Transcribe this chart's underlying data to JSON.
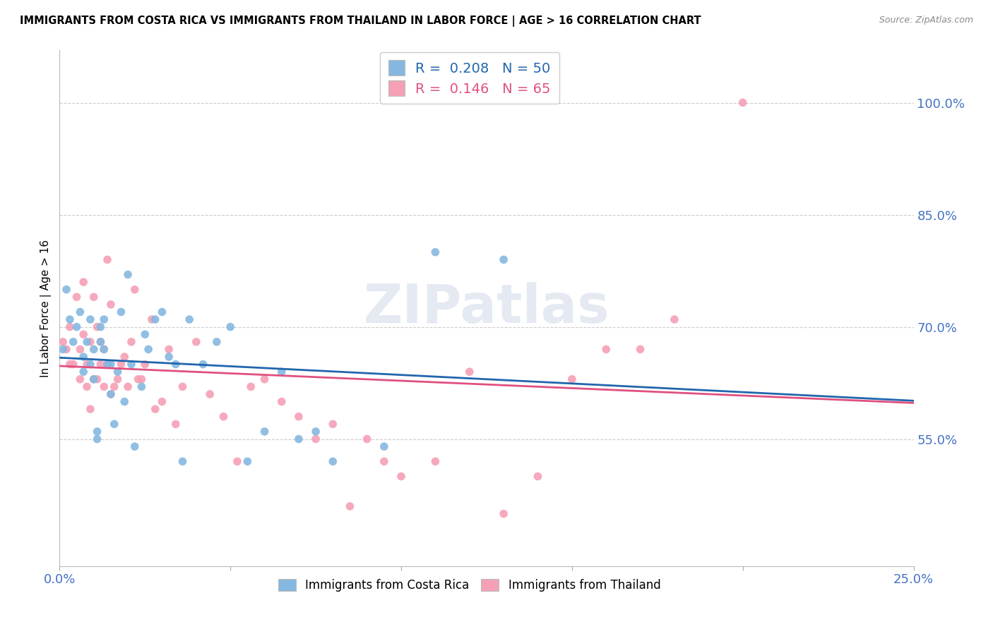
{
  "title": "IMMIGRANTS FROM COSTA RICA VS IMMIGRANTS FROM THAILAND IN LABOR FORCE | AGE > 16 CORRELATION CHART",
  "source": "Source: ZipAtlas.com",
  "ylabel": "In Labor Force | Age > 16",
  "xlim": [
    0.0,
    0.25
  ],
  "ylim": [
    0.38,
    1.07
  ],
  "xticks": [
    0.0,
    0.05,
    0.1,
    0.15,
    0.2,
    0.25
  ],
  "xticklabels": [
    "0.0%",
    "",
    "",
    "",
    "",
    "25.0%"
  ],
  "yticks_right": [
    0.55,
    0.7,
    0.85,
    1.0
  ],
  "ytick_labels_right": [
    "55.0%",
    "70.0%",
    "85.0%",
    "100.0%"
  ],
  "costa_rica_R": 0.208,
  "costa_rica_N": 50,
  "thailand_R": 0.146,
  "thailand_N": 65,
  "costa_rica_color": "#85b8e0",
  "thailand_color": "#f5a0b5",
  "trendline_costa_rica_color": "#2166ac",
  "trendline_thailand_color": "#e05080",
  "watermark": "ZIPatlas",
  "background_color": "#ffffff",
  "grid_color": "#cccccc",
  "right_axis_color": "#4472c4",
  "costa_rica_x": [
    0.001,
    0.002,
    0.003,
    0.004,
    0.005,
    0.006,
    0.007,
    0.007,
    0.008,
    0.009,
    0.009,
    0.01,
    0.01,
    0.011,
    0.011,
    0.012,
    0.012,
    0.013,
    0.013,
    0.014,
    0.015,
    0.015,
    0.016,
    0.017,
    0.018,
    0.019,
    0.02,
    0.021,
    0.022,
    0.024,
    0.025,
    0.026,
    0.028,
    0.03,
    0.032,
    0.034,
    0.036,
    0.038,
    0.042,
    0.046,
    0.05,
    0.055,
    0.06,
    0.065,
    0.07,
    0.075,
    0.08,
    0.095,
    0.11,
    0.13
  ],
  "costa_rica_y": [
    0.67,
    0.75,
    0.71,
    0.68,
    0.7,
    0.72,
    0.66,
    0.64,
    0.68,
    0.65,
    0.71,
    0.67,
    0.63,
    0.55,
    0.56,
    0.7,
    0.68,
    0.67,
    0.71,
    0.65,
    0.61,
    0.65,
    0.57,
    0.64,
    0.72,
    0.6,
    0.77,
    0.65,
    0.54,
    0.62,
    0.69,
    0.67,
    0.71,
    0.72,
    0.66,
    0.65,
    0.52,
    0.71,
    0.65,
    0.68,
    0.7,
    0.52,
    0.56,
    0.64,
    0.55,
    0.56,
    0.52,
    0.54,
    0.8,
    0.79
  ],
  "thailand_x": [
    0.001,
    0.002,
    0.003,
    0.003,
    0.004,
    0.005,
    0.006,
    0.006,
    0.007,
    0.007,
    0.008,
    0.008,
    0.009,
    0.009,
    0.01,
    0.01,
    0.011,
    0.011,
    0.012,
    0.012,
    0.013,
    0.013,
    0.014,
    0.014,
    0.015,
    0.015,
    0.016,
    0.017,
    0.018,
    0.019,
    0.02,
    0.021,
    0.022,
    0.023,
    0.024,
    0.025,
    0.027,
    0.028,
    0.03,
    0.032,
    0.034,
    0.036,
    0.04,
    0.044,
    0.048,
    0.052,
    0.056,
    0.06,
    0.065,
    0.07,
    0.075,
    0.08,
    0.085,
    0.09,
    0.095,
    0.1,
    0.11,
    0.12,
    0.13,
    0.14,
    0.15,
    0.16,
    0.17,
    0.18,
    0.2
  ],
  "thailand_y": [
    0.68,
    0.67,
    0.65,
    0.7,
    0.65,
    0.74,
    0.67,
    0.63,
    0.69,
    0.76,
    0.65,
    0.62,
    0.68,
    0.59,
    0.74,
    0.63,
    0.7,
    0.63,
    0.68,
    0.65,
    0.67,
    0.62,
    0.79,
    0.65,
    0.73,
    0.61,
    0.62,
    0.63,
    0.65,
    0.66,
    0.62,
    0.68,
    0.75,
    0.63,
    0.63,
    0.65,
    0.71,
    0.59,
    0.6,
    0.67,
    0.57,
    0.62,
    0.68,
    0.61,
    0.58,
    0.52,
    0.62,
    0.63,
    0.6,
    0.58,
    0.55,
    0.57,
    0.46,
    0.55,
    0.52,
    0.5,
    0.52,
    0.64,
    0.45,
    0.5,
    0.63,
    0.67,
    0.67,
    0.71,
    1.0
  ]
}
